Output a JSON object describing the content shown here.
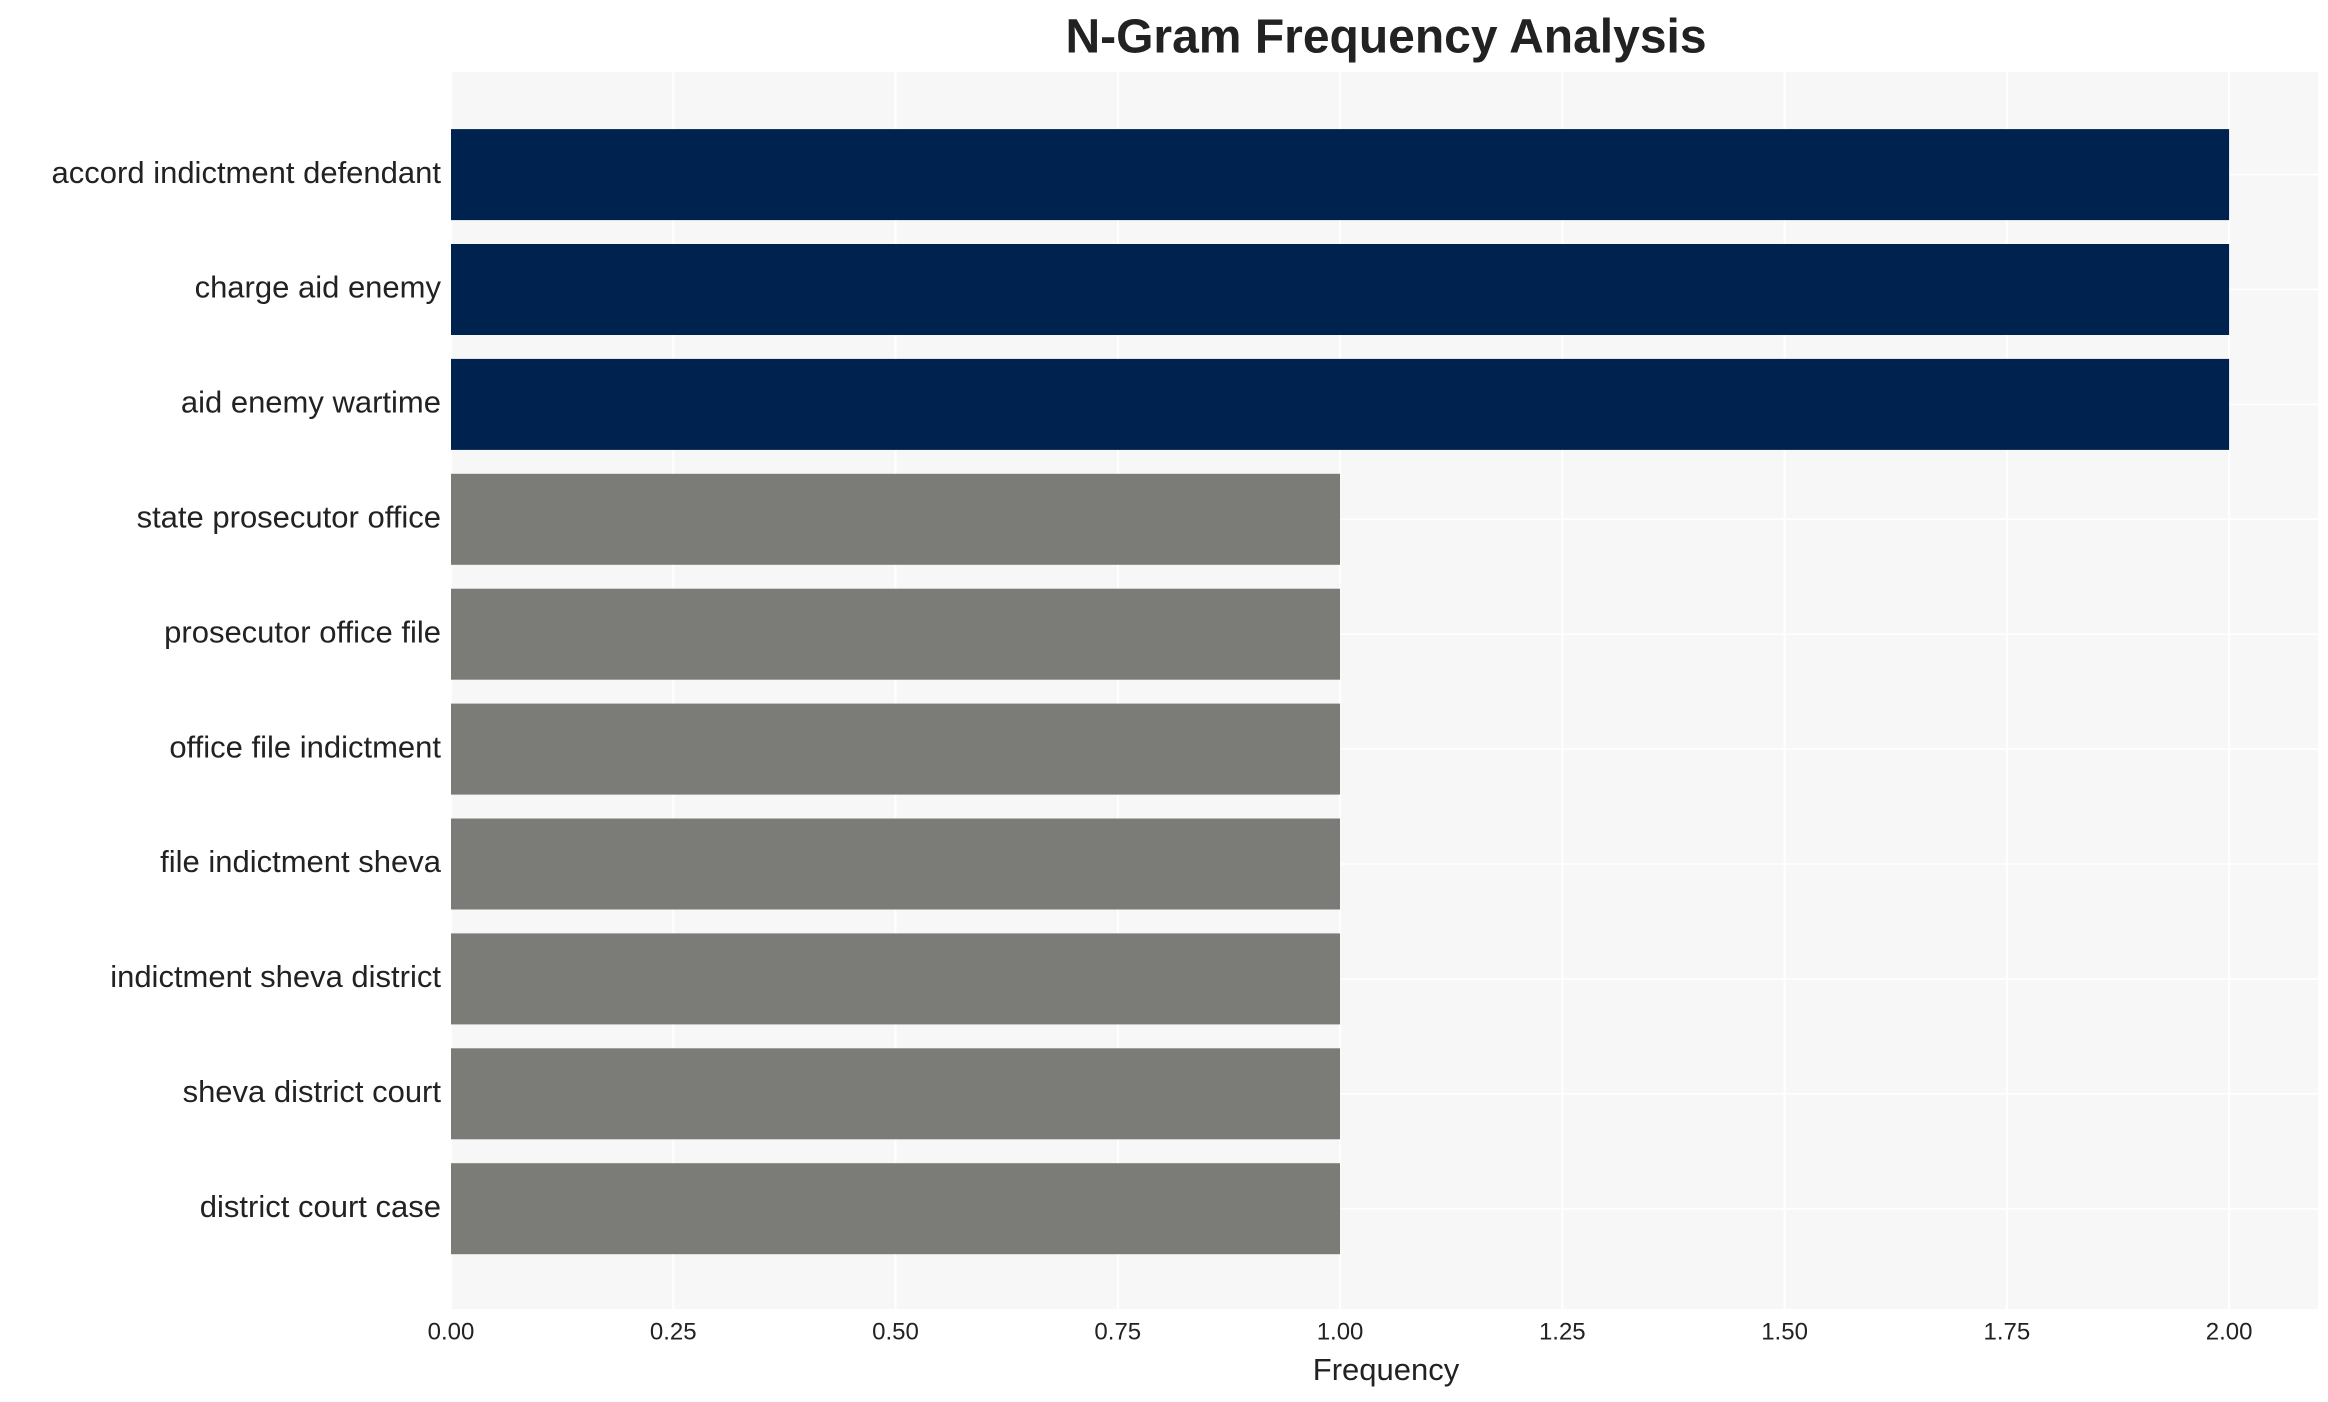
{
  "chart_data": {
    "type": "bar",
    "orientation": "horizontal",
    "title": "N-Gram Frequency Analysis",
    "x_label": "Frequency",
    "categories": [
      "accord indictment defendant",
      "charge aid enemy",
      "aid enemy wartime",
      "state prosecutor office",
      "prosecutor office file",
      "office file indictment",
      "file indictment sheva",
      "indictment sheva district",
      "sheva district court",
      "district court case"
    ],
    "values": [
      2,
      2,
      2,
      1,
      1,
      1,
      1,
      1,
      1,
      1
    ],
    "colors": [
      "#00224e",
      "#00224e",
      "#00224e",
      "#7b7b78",
      "#7b7b78",
      "#7b7b78",
      "#7b7b78",
      "#7b7b78",
      "#7b7b78",
      "#7b7b78"
    ],
    "xlim": [
      0,
      2.1
    ],
    "xticks": [
      {
        "value": 0,
        "label": "0.00"
      },
      {
        "value": 0.25,
        "label": "0.25"
      },
      {
        "value": 0.5,
        "label": "0.50"
      },
      {
        "value": 0.75,
        "label": "0.75"
      },
      {
        "value": 1,
        "label": "1.00"
      },
      {
        "value": 1.25,
        "label": "1.25"
      },
      {
        "value": 1.5,
        "label": "1.50"
      },
      {
        "value": 1.75,
        "label": "1.75"
      },
      {
        "value": 2,
        "label": "2.00"
      }
    ],
    "grid": true,
    "background": "#f7f7f7"
  }
}
